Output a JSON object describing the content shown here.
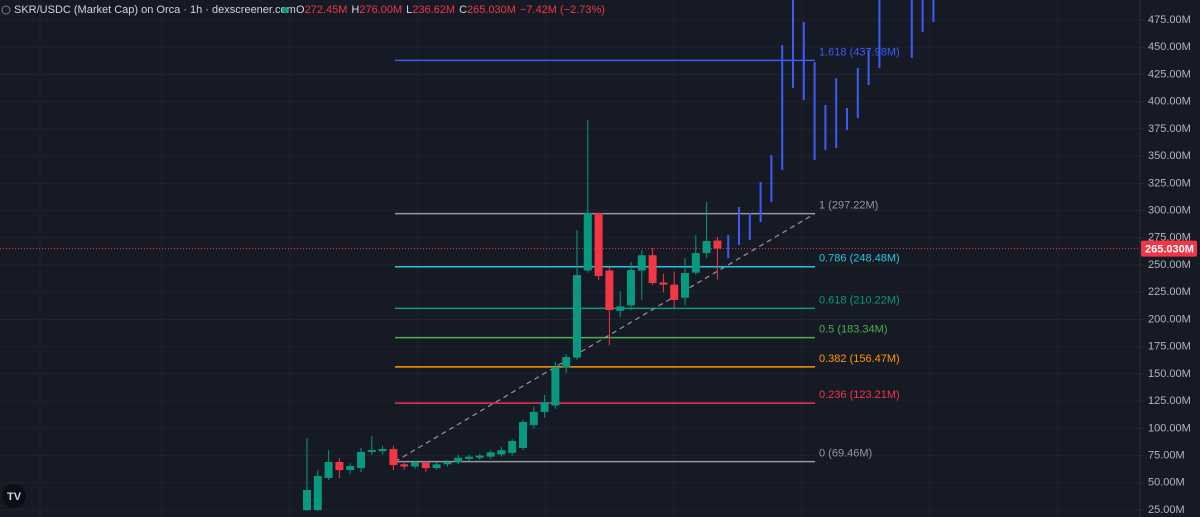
{
  "chart_data": {
    "type": "candlestick",
    "header": {
      "title": "SKR/USDC (Market Cap) on Orca · 1h · dexscreener.com",
      "ohlc": [
        {
          "key": "O",
          "value": "272.45M"
        },
        {
          "key": "H",
          "value": "276.00M"
        },
        {
          "key": "L",
          "value": "236.62M"
        },
        {
          "key": "C",
          "value": "265.030M"
        }
      ],
      "change": "−7.42M (−2.73%)"
    },
    "up_color": "#089981",
    "down_color": "#f23645",
    "open": [
      25,
      25,
      54.4,
      69.1,
      61.7,
      63.6,
      78.3,
      79,
      81,
      67,
      65,
      68.5,
      63.5,
      67,
      69,
      72,
      73,
      74,
      76,
      77.5,
      82,
      103,
      115,
      121,
      156,
      165,
      245,
      297.8,
      245,
      208,
      213,
      245,
      259,
      234,
      232,
      220,
      243,
      261,
      272.45
    ],
    "high": [
      91,
      61.7,
      80,
      72.8,
      68,
      81.9,
      93,
      84,
      84,
      70,
      70,
      70,
      69,
      71,
      76,
      76,
      77,
      80,
      83,
      90,
      108,
      120,
      130.6,
      161,
      168,
      282.1,
      383,
      298,
      248,
      226,
      252.7,
      263.8,
      265.6,
      242,
      244,
      256.4,
      277.5,
      307.9,
      276
    ],
    "low": [
      24,
      24,
      52.6,
      54.4,
      58,
      59.9,
      75.5,
      76,
      61.7,
      62,
      63,
      60,
      62,
      65,
      67,
      70,
      71,
      72,
      74,
      75,
      80,
      100,
      110,
      118,
      151,
      163,
      243,
      236,
      176.5,
      202,
      208.7,
      218,
      231.6,
      225,
      210.5,
      213,
      240.8,
      256.4,
      236.62
    ],
    "close": [
      43.4,
      56.2,
      69.1,
      61.7,
      65.4,
      78.3,
      80,
      81,
      66.3,
      65,
      68.5,
      63.5,
      67,
      69,
      73,
      74,
      75,
      78,
      80,
      88.4,
      105.8,
      115,
      124,
      156.3,
      165.5,
      240.8,
      297.8,
      239.9,
      208.7,
      212,
      245.4,
      259,
      233.5,
      232,
      217.9,
      242.7,
      261,
      272,
      265.03
    ],
    "projection": {
      "color": "#3d5cf5",
      "high": [
        277.5,
        303.3,
        297.8,
        326.2,
        351,
        452,
        500,
        473.2,
        436.4,
        397,
        421.7,
        394.2,
        430.9,
        447.4,
        500,
        null,
        null,
        500,
        500,
        500
      ],
      "low": [
        256.4,
        268.4,
        273,
        289.5,
        307.9,
        337.2,
        412.6,
        401.5,
        346.4,
        355.6,
        357.4,
        374,
        385,
        415.3,
        430.9,
        null,
        null,
        440.1,
        464,
        473.2
      ]
    },
    "fib_levels": [
      {
        "label": "1.618 (437.98M)",
        "value": 437.98,
        "color": "#3d5cf5"
      },
      {
        "label": "1 (297.22M)",
        "value": 297.22,
        "color": "#9598a1"
      },
      {
        "label": "0.786 (248.48M)",
        "value": 248.48,
        "color": "#26c6da"
      },
      {
        "label": "0.618 (210.22M)",
        "value": 210.22,
        "color": "#089981"
      },
      {
        "label": "0.5 (183.34M)",
        "value": 183.34,
        "color": "#4caf50"
      },
      {
        "label": "0.382 (156.47M)",
        "value": 156.47,
        "color": "#ff9800"
      },
      {
        "label": "0.236 (123.21M)",
        "value": 123.21,
        "color": "#f23645"
      },
      {
        "label": "0 (69.46M)",
        "value": 69.46,
        "color": "#9598a1"
      }
    ],
    "last_price": {
      "value": 265.03,
      "label": "265.030M",
      "color": "#f23645"
    },
    "ylim": [
      18.6,
      493.4
    ],
    "yticks": [
      {
        "value": 25,
        "label": "25.00M"
      },
      {
        "value": 50,
        "label": "50.00M"
      },
      {
        "value": 75,
        "label": "75.00M"
      },
      {
        "value": 100,
        "label": "100.00M"
      },
      {
        "value": 125,
        "label": "125.00M"
      },
      {
        "value": 150,
        "label": "150.00M"
      },
      {
        "value": 175,
        "label": "175.00M"
      },
      {
        "value": 200,
        "label": "200.00M"
      },
      {
        "value": 225,
        "label": "225.00M"
      },
      {
        "value": 250,
        "label": "250.00M"
      },
      {
        "value": 275,
        "label": "275.00M"
      },
      {
        "value": 300,
        "label": "300.00M"
      },
      {
        "value": 325,
        "label": "325.00M"
      },
      {
        "value": 350,
        "label": "350.00M"
      },
      {
        "value": 375,
        "label": "375.00M"
      },
      {
        "value": 400,
        "label": "400.00M"
      },
      {
        "value": 425,
        "label": "425.00M"
      },
      {
        "value": 450,
        "label": "450.00M"
      },
      {
        "value": 475,
        "label": "475.00M"
      }
    ],
    "grid": true
  }
}
